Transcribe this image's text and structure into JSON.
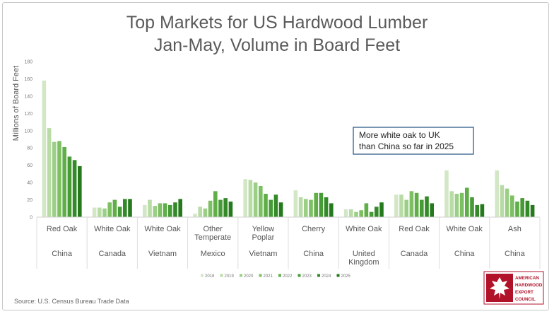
{
  "chart_data": {
    "type": "bar",
    "title_line1": "Top Markets for US Hardwood Lumber",
    "title_line2": "Jan-May, Volume in Board Feet",
    "ylabel": "Millions of Board Feet",
    "ylim": [
      0,
      180
    ],
    "yticks": [
      0,
      20,
      40,
      60,
      80,
      100,
      120,
      140,
      160,
      180
    ],
    "categories": [
      {
        "species": "Red Oak",
        "market": "China"
      },
      {
        "species": "White Oak",
        "market": "Canada"
      },
      {
        "species": "White Oak",
        "market": "Vietnam"
      },
      {
        "species": "Other Temperate",
        "market": "Mexico"
      },
      {
        "species": "Yellow Poplar",
        "market": "Vietnam"
      },
      {
        "species": "Cherry",
        "market": "China"
      },
      {
        "species": "White Oak",
        "market": "United Kingdom"
      },
      {
        "species": "Red Oak",
        "market": "Canada"
      },
      {
        "species": "White Oak",
        "market": "China"
      },
      {
        "species": "Ash",
        "market": "China"
      }
    ],
    "series": [
      {
        "name": "2018",
        "color": "#d3e7c6",
        "values": [
          158,
          11,
          14,
          4,
          44,
          31,
          9,
          26,
          54,
          54
        ]
      },
      {
        "name": "2019",
        "color": "#b9dba6",
        "values": [
          103,
          11,
          20,
          12,
          43,
          23,
          9,
          26,
          30,
          37
        ]
      },
      {
        "name": "2020",
        "color": "#9ccf86",
        "values": [
          87,
          10,
          13,
          10,
          40,
          21,
          6,
          20,
          27,
          33
        ]
      },
      {
        "name": "2021",
        "color": "#7dbf63",
        "values": [
          88,
          17,
          16,
          19,
          36,
          20,
          8,
          30,
          28,
          25
        ]
      },
      {
        "name": "2022",
        "color": "#5fae48",
        "values": [
          81,
          20,
          16,
          30,
          27,
          28,
          16,
          28,
          34,
          18
        ]
      },
      {
        "name": "2023",
        "color": "#469b36",
        "values": [
          70,
          12,
          14,
          20,
          20,
          28,
          6,
          20,
          23,
          22
        ]
      },
      {
        "name": "2024",
        "color": "#348a28",
        "values": [
          66,
          21,
          17,
          22,
          26,
          23,
          12,
          24,
          14,
          19
        ]
      },
      {
        "name": "2025",
        "color": "#267a1e",
        "values": [
          59,
          21,
          21,
          18,
          17,
          16,
          17,
          16,
          15,
          14
        ]
      }
    ],
    "annotation": "More white oak to UK than China so far in 2025",
    "annotation_line1": "More white oak to UK",
    "annotation_line2": "than China so far in 2025",
    "legend_position": "bottom",
    "grid": false
  },
  "source": "Source: U.S. Census Bureau Trade Data",
  "logo": {
    "lines": [
      "AMERICAN",
      "HARDWOOD",
      "EXPORT",
      "COUNCIL"
    ],
    "brand_color": "#b1122a"
  }
}
